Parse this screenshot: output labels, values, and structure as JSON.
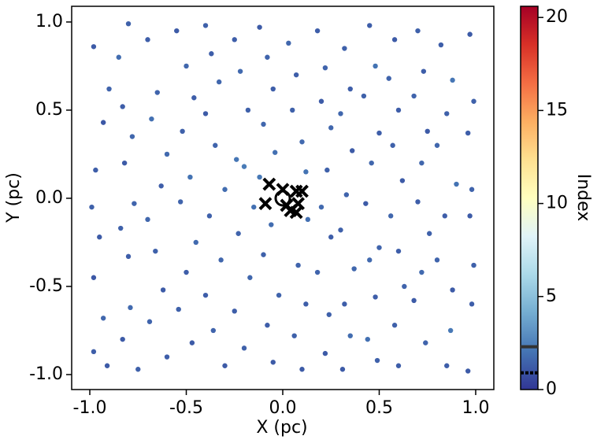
{
  "chart_data": {
    "type": "scatter",
    "xlabel": "X (pc)",
    "ylabel": "Y (pc)",
    "colorbar_label": "Index",
    "colormap": "RdYlBu_r",
    "xlim": [
      -1.094,
      1.094
    ],
    "ylim": [
      -1.085,
      1.089
    ],
    "clim": [
      0,
      20.6
    ],
    "xticks": [
      {
        "value": -1,
        "label": "-1.0"
      },
      {
        "value": -0.5,
        "label": "-0.5"
      },
      {
        "value": 0,
        "label": "0.0"
      },
      {
        "value": 0.5,
        "label": "0.5"
      },
      {
        "value": 1,
        "label": "1.0"
      }
    ],
    "yticks": [
      {
        "value": -1,
        "label": "-1.0"
      },
      {
        "value": -0.5,
        "label": "-0.5"
      },
      {
        "value": 0,
        "label": "0.0"
      },
      {
        "value": 0.5,
        "label": "0.5"
      },
      {
        "value": 1,
        "label": "1.0"
      }
    ],
    "cticks": [
      0,
      5,
      10,
      15,
      20
    ],
    "colorbar_lines": [
      {
        "value": 2.3,
        "style": "solid"
      },
      {
        "value": 0.9,
        "style": "dotted"
      }
    ],
    "points": [
      [
        -0.98,
        0.86,
        1.2
      ],
      [
        -0.9,
        0.62,
        1.5
      ],
      [
        -0.93,
        0.43,
        1.1
      ],
      [
        -0.97,
        0.16,
        1.3
      ],
      [
        -0.99,
        -0.05,
        1.4
      ],
      [
        -0.95,
        -0.22,
        1.2
      ],
      [
        -0.98,
        -0.45,
        1.1
      ],
      [
        -0.93,
        -0.68,
        1.6
      ],
      [
        -0.98,
        -0.87,
        1.3
      ],
      [
        -0.91,
        -0.95,
        1.2
      ],
      [
        -0.8,
        0.99,
        1.4
      ],
      [
        -0.85,
        0.8,
        1.8
      ],
      [
        -0.83,
        0.52,
        1.3
      ],
      [
        -0.78,
        0.35,
        1.6
      ],
      [
        -0.82,
        0.2,
        1.2
      ],
      [
        -0.77,
        -0.03,
        1.5
      ],
      [
        -0.84,
        -0.17,
        1.4
      ],
      [
        -0.8,
        -0.33,
        1.3
      ],
      [
        -0.79,
        -0.62,
        1.7
      ],
      [
        -0.83,
        -0.8,
        1.2
      ],
      [
        -0.75,
        -0.97,
        1.4
      ],
      [
        -0.7,
        0.9,
        1.3
      ],
      [
        -0.65,
        0.6,
        1.5
      ],
      [
        -0.68,
        0.45,
        1.9
      ],
      [
        -0.6,
        0.25,
        1.7
      ],
      [
        -0.63,
        0.07,
        1.3
      ],
      [
        -0.7,
        -0.12,
        1.6
      ],
      [
        -0.66,
        -0.3,
        1.4
      ],
      [
        -0.62,
        -0.52,
        1.2
      ],
      [
        -0.69,
        -0.7,
        1.5
      ],
      [
        -0.6,
        -0.9,
        1.3
      ],
      [
        -0.55,
        0.95,
        1.2
      ],
      [
        -0.5,
        0.75,
        1.6
      ],
      [
        -0.46,
        0.57,
        1.3
      ],
      [
        -0.52,
        0.38,
        1.4
      ],
      [
        -0.48,
        0.12,
        2.0
      ],
      [
        -0.53,
        -0.02,
        1.5
      ],
      [
        -0.45,
        -0.25,
        1.7
      ],
      [
        -0.5,
        -0.42,
        1.3
      ],
      [
        -0.54,
        -0.63,
        1.4
      ],
      [
        -0.47,
        -0.82,
        1.2
      ],
      [
        -0.4,
        0.98,
        1.4
      ],
      [
        -0.37,
        0.82,
        1.3
      ],
      [
        -0.33,
        0.66,
        1.6
      ],
      [
        -0.4,
        0.48,
        1.2
      ],
      [
        -0.35,
        0.3,
        1.5
      ],
      [
        -0.3,
        0.05,
        1.8
      ],
      [
        -0.38,
        -0.1,
        1.4
      ],
      [
        -0.32,
        -0.35,
        1.6
      ],
      [
        -0.4,
        -0.55,
        1.3
      ],
      [
        -0.36,
        -0.75,
        1.5
      ],
      [
        -0.3,
        -0.95,
        1.2
      ],
      [
        -0.25,
        0.9,
        1.3
      ],
      [
        -0.22,
        0.72,
        1.7
      ],
      [
        -0.18,
        0.5,
        1.4
      ],
      [
        -0.24,
        0.22,
        2.1
      ],
      [
        -0.2,
        0.18,
        2.3
      ],
      [
        -0.15,
        -0.05,
        1.9
      ],
      [
        -0.23,
        -0.2,
        1.5
      ],
      [
        -0.17,
        -0.45,
        1.6
      ],
      [
        -0.25,
        -0.64,
        1.3
      ],
      [
        -0.2,
        -0.85,
        1.4
      ],
      [
        -0.12,
        0.97,
        1.2
      ],
      [
        -0.08,
        0.8,
        1.5
      ],
      [
        -0.05,
        0.62,
        1.3
      ],
      [
        -0.1,
        0.42,
        1.6
      ],
      [
        -0.04,
        0.26,
        1.9
      ],
      [
        -0.12,
        0.12,
        2.2
      ],
      [
        -0.06,
        -0.15,
        1.8
      ],
      [
        -0.1,
        -0.32,
        1.4
      ],
      [
        -0.02,
        -0.55,
        1.5
      ],
      [
        -0.08,
        -0.72,
        1.3
      ],
      [
        -0.05,
        -0.93,
        1.2
      ],
      [
        0.03,
        0.88,
        1.6
      ],
      [
        0.07,
        0.7,
        1.3
      ],
      [
        0.05,
        0.5,
        1.4
      ],
      [
        0.1,
        0.32,
        1.7
      ],
      [
        0.12,
        0.15,
        2.0
      ],
      [
        0.13,
        -0.12,
        1.9
      ],
      [
        0.08,
        -0.38,
        1.5
      ],
      [
        0.12,
        -0.6,
        1.3
      ],
      [
        0.06,
        -0.78,
        1.4
      ],
      [
        0.1,
        -0.97,
        1.2
      ],
      [
        0.18,
        0.95,
        1.3
      ],
      [
        0.22,
        0.74,
        1.5
      ],
      [
        0.2,
        0.55,
        1.2
      ],
      [
        0.25,
        0.4,
        1.6
      ],
      [
        0.23,
        0.16,
        1.4
      ],
      [
        0.2,
        -0.05,
        1.7
      ],
      [
        0.25,
        -0.22,
        1.3
      ],
      [
        0.18,
        -0.42,
        1.5
      ],
      [
        0.24,
        -0.66,
        1.4
      ],
      [
        0.22,
        -0.88,
        1.2
      ],
      [
        0.32,
        0.85,
        1.4
      ],
      [
        0.35,
        0.62,
        1.3
      ],
      [
        0.3,
        0.48,
        1.6
      ],
      [
        0.36,
        0.27,
        1.2
      ],
      [
        0.33,
        0.02,
        1.5
      ],
      [
        0.3,
        -0.18,
        1.4
      ],
      [
        0.37,
        -0.4,
        1.6
      ],
      [
        0.32,
        -0.6,
        1.3
      ],
      [
        0.35,
        -0.78,
        1.8
      ],
      [
        0.31,
        -0.97,
        1.2
      ],
      [
        0.45,
        0.98,
        1.3
      ],
      [
        0.48,
        0.75,
        2.0
      ],
      [
        0.42,
        0.58,
        1.4
      ],
      [
        0.5,
        0.37,
        1.3
      ],
      [
        0.46,
        0.2,
        1.6
      ],
      [
        0.43,
        -0.03,
        1.2
      ],
      [
        0.5,
        -0.28,
        1.5
      ],
      [
        0.45,
        -0.35,
        1.7
      ],
      [
        0.48,
        -0.56,
        1.3
      ],
      [
        0.44,
        -0.8,
        1.9
      ],
      [
        0.49,
        -0.92,
        1.4
      ],
      [
        0.58,
        0.9,
        1.2
      ],
      [
        0.55,
        0.68,
        1.5
      ],
      [
        0.6,
        0.5,
        1.3
      ],
      [
        0.57,
        0.3,
        1.4
      ],
      [
        0.62,
        0.1,
        1.2
      ],
      [
        0.56,
        -0.1,
        1.6
      ],
      [
        0.6,
        -0.3,
        1.3
      ],
      [
        0.63,
        -0.5,
        1.5
      ],
      [
        0.58,
        -0.72,
        1.4
      ],
      [
        0.6,
        -0.95,
        1.3
      ],
      [
        0.7,
        0.95,
        1.4
      ],
      [
        0.73,
        0.72,
        1.3
      ],
      [
        0.68,
        0.58,
        1.5
      ],
      [
        0.75,
        0.38,
        1.2
      ],
      [
        0.72,
        0.2,
        1.6
      ],
      [
        0.7,
        -0.02,
        1.3
      ],
      [
        0.76,
        -0.2,
        1.4
      ],
      [
        0.72,
        -0.42,
        1.7
      ],
      [
        0.68,
        -0.58,
        1.2
      ],
      [
        0.74,
        -0.82,
        1.5
      ],
      [
        0.82,
        0.87,
        1.3
      ],
      [
        0.88,
        0.67,
        2.1
      ],
      [
        0.85,
        0.48,
        1.4
      ],
      [
        0.8,
        0.3,
        1.6
      ],
      [
        0.9,
        0.08,
        2.0
      ],
      [
        0.84,
        -0.1,
        1.3
      ],
      [
        0.8,
        -0.35,
        1.5
      ],
      [
        0.88,
        -0.52,
        1.2
      ],
      [
        0.87,
        -0.75,
        2.2
      ],
      [
        0.85,
        -0.95,
        1.3
      ],
      [
        0.97,
        0.93,
        1.2
      ],
      [
        0.99,
        0.55,
        1.4
      ],
      [
        0.96,
        0.37,
        1.3
      ],
      [
        0.98,
        0.05,
        1.5
      ],
      [
        0.97,
        -0.1,
        1.2
      ],
      [
        0.99,
        -0.38,
        1.4
      ],
      [
        0.98,
        -0.6,
        1.3
      ],
      [
        0.96,
        -0.98,
        1.2
      ]
    ],
    "crosses": [
      [
        -0.07,
        0.08
      ],
      [
        0.0,
        0.05
      ],
      [
        0.07,
        0.04
      ],
      [
        0.1,
        0.04
      ],
      [
        -0.09,
        -0.03
      ],
      [
        0.02,
        -0.04
      ],
      [
        0.04,
        -0.07
      ],
      [
        0.07,
        -0.08
      ],
      [
        0.08,
        -0.03
      ]
    ],
    "circle": [
      0.0,
      0.0
    ]
  }
}
